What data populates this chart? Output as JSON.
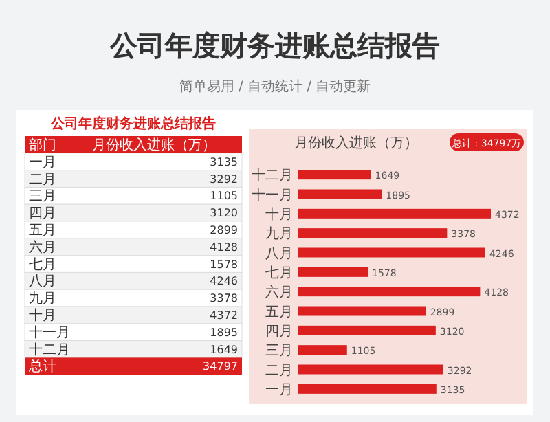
{
  "chart_data": {
    "type": "bar",
    "orientation": "horizontal",
    "title": "公司年度财务进账总结报告",
    "subtitle": "简单易用 / 自动统计 / 自动更新",
    "annotations": [
      "月份收入进账（万）",
      "总计：34797万",
      "公司年度财务进账总结报告",
      "部门",
      "月份收入进账（万）",
      "总计",
      "34797",
      "3135",
      "3292",
      "1105",
      "3120",
      "2899",
      "4128",
      "1578",
      "4246",
      "3378",
      "4372",
      "1895",
      "1649"
    ],
    "categories": [
      "十二月",
      "十一月",
      "十月",
      "九月",
      "八月",
      "七月",
      "六月",
      "五月",
      "四月",
      "三月",
      "二月",
      "一月"
    ],
    "values": [
      1649,
      1895,
      4372,
      3378,
      4246,
      1578,
      4128,
      2899,
      3120,
      1105,
      3292,
      3135
    ],
    "color": "#dc1f1f",
    "data_labels": true
  }
}
